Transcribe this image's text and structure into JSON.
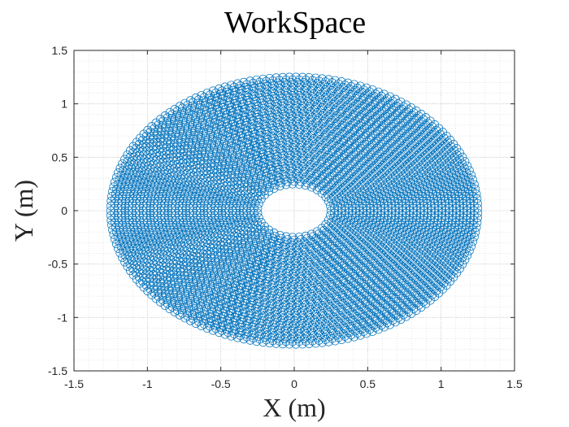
{
  "chart_data": {
    "type": "scatter",
    "title": "WorkSpace",
    "xlabel": "X (m)",
    "ylabel": "Y (m)",
    "xlim": [
      -1.5,
      1.5
    ],
    "ylim": [
      -1.5,
      1.5
    ],
    "x_ticks": [
      -1.5,
      -1,
      -0.5,
      0,
      0.5,
      1,
      1.5
    ],
    "y_ticks": [
      -1.5,
      -1,
      -0.5,
      0,
      0.5,
      1,
      1.5
    ],
    "x_tick_labels": [
      "-1.5",
      "-1",
      "-0.5",
      "0",
      "0.5",
      "1",
      "1.5"
    ],
    "y_tick_labels": [
      "-1.5",
      "-1",
      "-0.5",
      "0",
      "0.5",
      "1",
      "1.5"
    ],
    "grid": true,
    "minor_grid": true,
    "marker": "circle",
    "marker_fill": "none",
    "series_color": "#0072BD",
    "workspace_region": {
      "inner_radius": 0.25,
      "outer_radius": 1.25,
      "center": [
        0,
        0
      ]
    }
  }
}
